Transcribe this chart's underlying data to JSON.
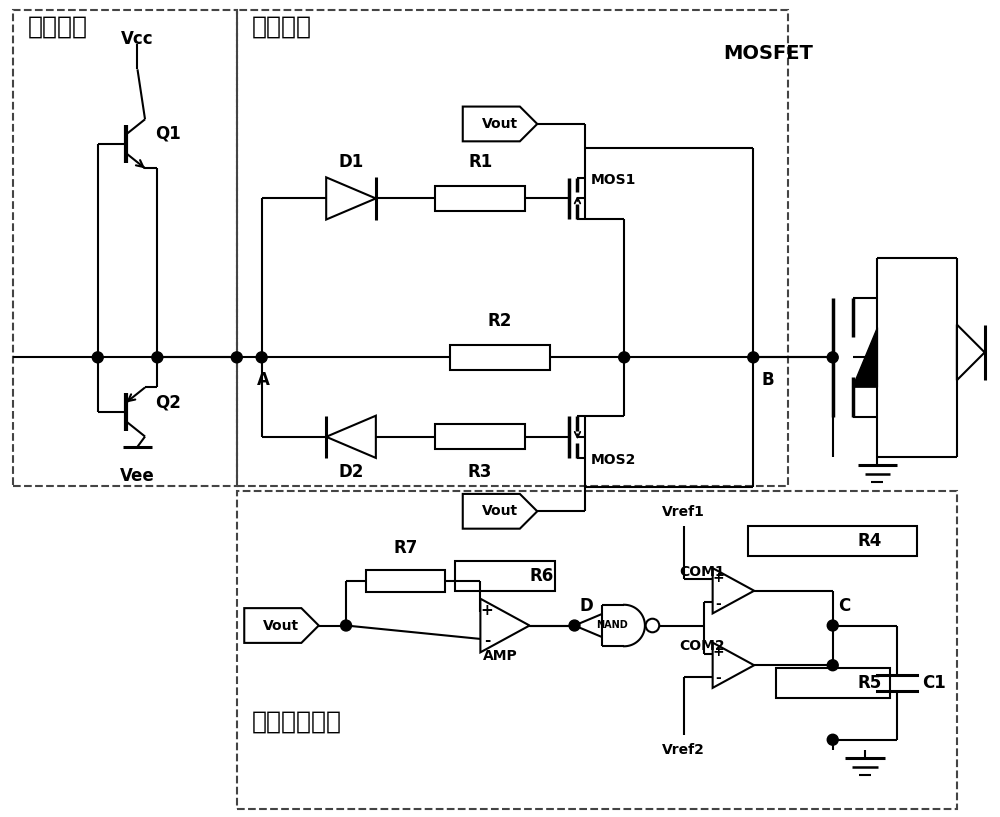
{
  "bg_color": "#ffffff",
  "line_color": "#000000",
  "labels": {
    "tuijuan": "推挽模块",
    "diankzu": "电阻模块",
    "maichong": "脉冲产生模块",
    "MOSFET": "MOSFET",
    "Vcc": "Vcc",
    "Vee": "Vee",
    "Q1": "Q1",
    "Q2": "Q2",
    "D1": "D1",
    "D2": "D2",
    "R1": "R1",
    "R2": "R2",
    "R3": "R3",
    "R4": "R4",
    "R5": "R5",
    "R6": "R6",
    "R7": "R7",
    "C1": "C1",
    "MOS1": "MOS1",
    "MOS2": "MOS2",
    "A": "A",
    "B": "B",
    "C": "C",
    "D_label": "D",
    "Vout": "Vout",
    "Vref1": "Vref1",
    "Vref2": "Vref2",
    "COM1": "COM1",
    "COM2": "COM2",
    "AMP": "AMP",
    "NAND": "NAND"
  },
  "fonts": {
    "chinese_size": 18,
    "label_size": 12,
    "small_size": 10,
    "mosfet_size": 14
  }
}
